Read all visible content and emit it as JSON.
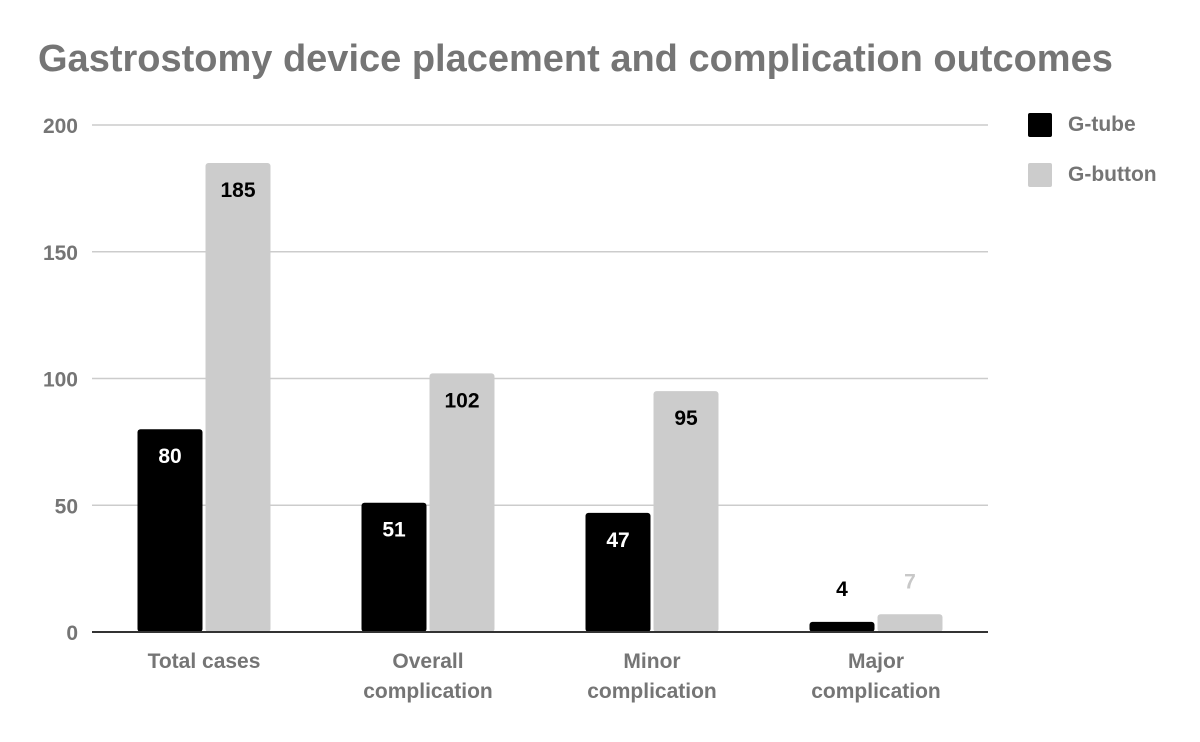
{
  "chart_data": {
    "type": "bar",
    "title": "Gastrostomy device placement and complication outcomes",
    "categories": [
      [
        "Total cases"
      ],
      [
        "Overall",
        "complication"
      ],
      [
        "Minor",
        "complication"
      ],
      [
        "Major",
        "complication"
      ]
    ],
    "series": [
      {
        "name": "G-tube",
        "color": "#000000",
        "values": [
          80,
          51,
          47,
          4
        ]
      },
      {
        "name": "G-button",
        "color": "#cccccc",
        "values": [
          185,
          102,
          95,
          7
        ]
      }
    ],
    "ylim": [
      0,
      200
    ],
    "yticks": [
      0,
      50,
      100,
      150,
      200
    ],
    "xlabel": "",
    "ylabel": "",
    "grid": true,
    "legend_position": "right",
    "data_labels": true
  }
}
